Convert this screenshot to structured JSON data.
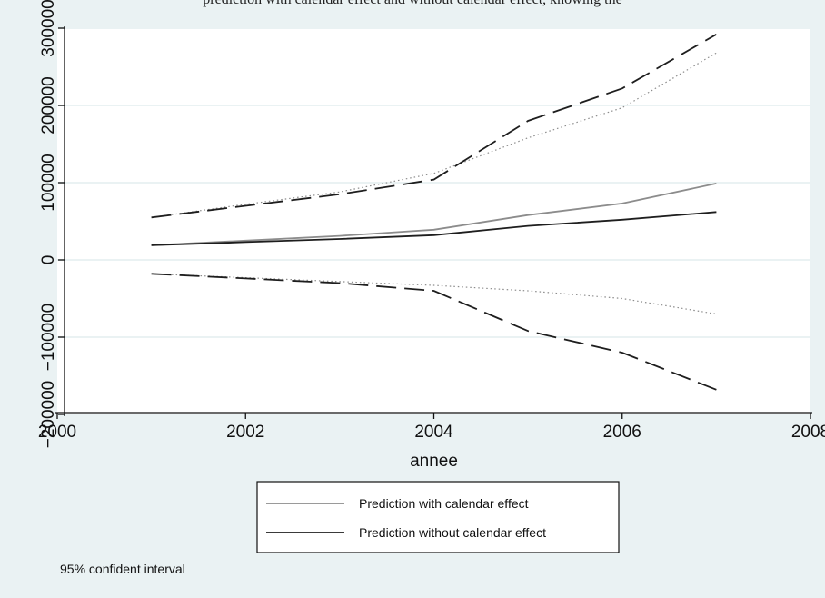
{
  "header": {
    "caption": "prediction with calendar effect and without calendar effect, knowing the"
  },
  "note": "95% confident interval",
  "colors": {
    "outer_background": "#eaf2f3",
    "plot_background": "#ffffff",
    "grid": "#eaf2f3",
    "with_calendar": "#8c8c8c",
    "without_calendar": "#1e1e1e"
  },
  "chart_data": {
    "type": "line",
    "title": "",
    "xlabel": "annee",
    "ylabel": "",
    "xlim": [
      2000,
      2008
    ],
    "ylim": [
      -200000,
      300000
    ],
    "xticks": [
      2000,
      2002,
      2004,
      2006,
      2008
    ],
    "yticks": [
      -200000,
      -100000,
      0,
      100000,
      200000,
      300000
    ],
    "xtick_labels": [
      "2000",
      "2002",
      "2004",
      "2006",
      "2008"
    ],
    "ytick_labels": [
      "−200000",
      "−100000",
      "0",
      "100000",
      "200000",
      "300000"
    ],
    "grid": true,
    "legend_position": "bottom",
    "x": [
      2001,
      2002,
      2003,
      2004,
      2005,
      2006,
      2007
    ],
    "series": [
      {
        "name": "Prediction with calendar effect",
        "style": "solid",
        "color": "#8c8c8c",
        "legend": true,
        "values": [
          19000,
          25000,
          31000,
          39000,
          58000,
          73000,
          99000
        ]
      },
      {
        "name": "Prediction without calendar effect",
        "style": "solid",
        "color": "#1e1e1e",
        "legend": true,
        "values": [
          19000,
          23000,
          27000,
          32000,
          44000,
          52000,
          62000
        ]
      },
      {
        "name": "",
        "style": "dotted",
        "color": "#8c8c8c",
        "legend": false,
        "values": [
          55000,
          72000,
          88000,
          112000,
          158000,
          197000,
          268000
        ]
      },
      {
        "name": "",
        "style": "dotted",
        "color": "#8c8c8c",
        "legend": false,
        "values": [
          -18000,
          -23000,
          -28000,
          -33000,
          -40000,
          -50000,
          -70000
        ]
      },
      {
        "name": "",
        "style": "dashed",
        "color": "#1e1e1e",
        "legend": false,
        "values": [
          55000,
          70000,
          85000,
          104000,
          180000,
          222000,
          292000
        ]
      },
      {
        "name": "",
        "style": "dashed",
        "color": "#1e1e1e",
        "legend": false,
        "values": [
          -18000,
          -24000,
          -30000,
          -40000,
          -92000,
          -120000,
          -168000
        ]
      }
    ]
  }
}
